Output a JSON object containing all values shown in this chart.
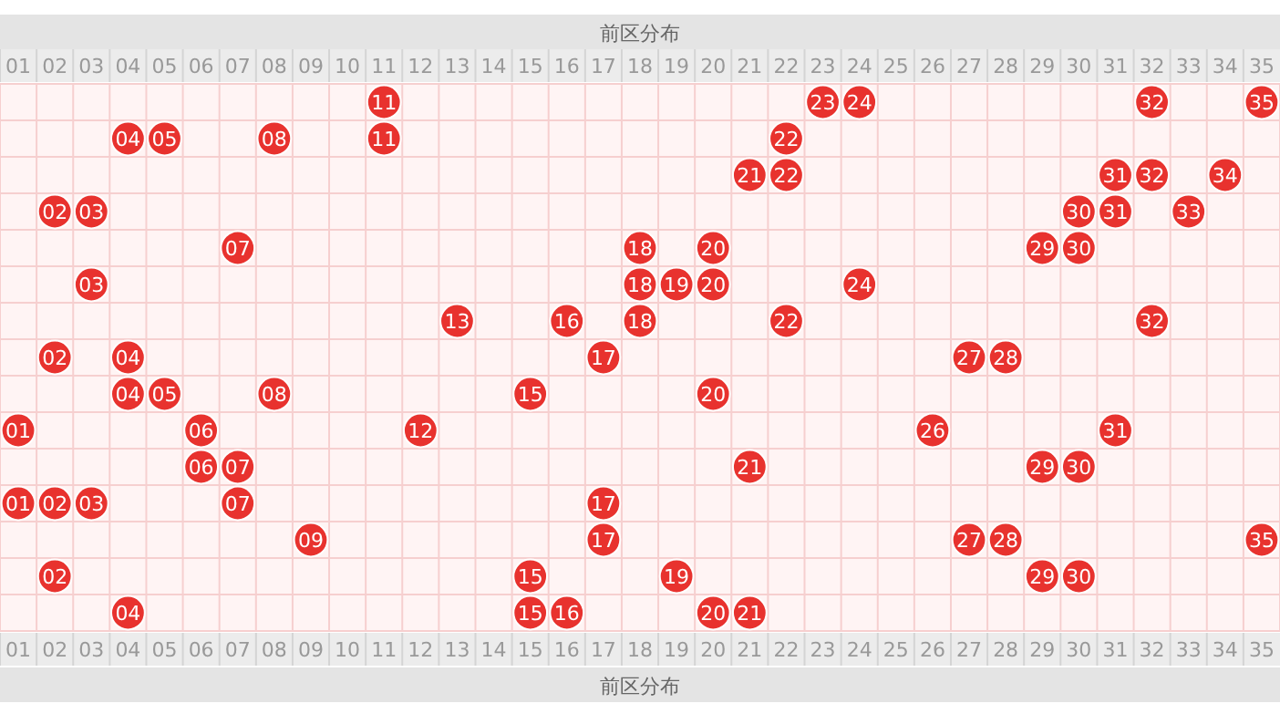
{
  "chart_data": {
    "type": "heatmap",
    "title": "前区分布",
    "xlabel": "前区分布",
    "categories": [
      "01",
      "02",
      "03",
      "04",
      "05",
      "06",
      "07",
      "08",
      "09",
      "10",
      "11",
      "12",
      "13",
      "14",
      "15",
      "16",
      "17",
      "18",
      "19",
      "20",
      "21",
      "22",
      "23",
      "24",
      "25",
      "26",
      "27",
      "28",
      "29",
      "30",
      "31",
      "32",
      "33",
      "34",
      "35"
    ],
    "y_categories": [
      null,
      null,
      null,
      null,
      null,
      null,
      null,
      null,
      null,
      null,
      null,
      null,
      null,
      null,
      null
    ],
    "cells": [
      [
        null,
        null,
        null,
        null,
        null,
        null,
        null,
        null,
        null,
        null,
        11,
        null,
        null,
        null,
        null,
        null,
        null,
        null,
        null,
        null,
        null,
        null,
        23,
        24,
        null,
        null,
        null,
        null,
        null,
        null,
        null,
        32,
        null,
        null,
        35
      ],
      [
        null,
        null,
        null,
        4,
        5,
        null,
        null,
        8,
        null,
        null,
        11,
        null,
        null,
        null,
        null,
        null,
        null,
        null,
        null,
        null,
        null,
        22,
        null,
        null,
        null,
        null,
        null,
        null,
        null,
        null,
        null,
        null,
        null,
        null,
        null
      ],
      [
        null,
        null,
        null,
        null,
        null,
        null,
        null,
        null,
        null,
        null,
        null,
        null,
        null,
        null,
        null,
        null,
        null,
        null,
        null,
        null,
        21,
        22,
        null,
        null,
        null,
        null,
        null,
        null,
        null,
        null,
        31,
        32,
        null,
        34,
        null
      ],
      [
        null,
        2,
        3,
        null,
        null,
        null,
        null,
        null,
        null,
        null,
        null,
        null,
        null,
        null,
        null,
        null,
        null,
        null,
        null,
        null,
        null,
        null,
        null,
        null,
        null,
        null,
        null,
        null,
        null,
        30,
        31,
        null,
        33,
        null,
        null
      ],
      [
        null,
        null,
        null,
        null,
        null,
        null,
        7,
        null,
        null,
        null,
        null,
        null,
        null,
        null,
        null,
        null,
        null,
        18,
        null,
        20,
        null,
        null,
        null,
        null,
        null,
        null,
        null,
        null,
        29,
        30,
        null,
        null,
        null,
        null,
        null
      ],
      [
        null,
        null,
        3,
        null,
        null,
        null,
        null,
        null,
        null,
        null,
        null,
        null,
        null,
        null,
        null,
        null,
        null,
        18,
        19,
        20,
        null,
        null,
        null,
        24,
        null,
        null,
        null,
        null,
        null,
        null,
        null,
        null,
        null,
        null,
        null
      ],
      [
        null,
        null,
        null,
        null,
        null,
        null,
        null,
        null,
        null,
        null,
        null,
        null,
        13,
        null,
        null,
        16,
        null,
        18,
        null,
        null,
        null,
        22,
        null,
        null,
        null,
        null,
        null,
        null,
        null,
        null,
        null,
        32,
        null,
        null,
        null
      ],
      [
        null,
        2,
        null,
        4,
        null,
        null,
        null,
        null,
        null,
        null,
        null,
        null,
        null,
        null,
        null,
        null,
        17,
        null,
        null,
        null,
        null,
        null,
        null,
        null,
        null,
        null,
        27,
        28,
        null,
        null,
        null,
        null,
        null,
        null,
        null
      ],
      [
        null,
        null,
        null,
        4,
        5,
        null,
        null,
        8,
        null,
        null,
        null,
        null,
        null,
        null,
        15,
        null,
        null,
        null,
        null,
        20,
        null,
        null,
        null,
        null,
        null,
        null,
        null,
        null,
        null,
        null,
        null,
        null,
        null,
        null,
        null
      ],
      [
        1,
        null,
        null,
        null,
        null,
        6,
        null,
        null,
        null,
        null,
        null,
        12,
        null,
        null,
        null,
        null,
        null,
        null,
        null,
        null,
        null,
        null,
        null,
        null,
        null,
        26,
        null,
        null,
        null,
        null,
        31,
        null,
        null,
        null,
        null
      ],
      [
        null,
        null,
        null,
        null,
        null,
        6,
        7,
        null,
        null,
        null,
        null,
        null,
        null,
        null,
        null,
        null,
        null,
        null,
        null,
        null,
        21,
        null,
        null,
        null,
        null,
        null,
        null,
        null,
        29,
        30,
        null,
        null,
        null,
        null,
        null
      ],
      [
        1,
        2,
        3,
        null,
        null,
        null,
        7,
        null,
        null,
        null,
        null,
        null,
        null,
        null,
        null,
        null,
        17,
        null,
        null,
        null,
        null,
        null,
        null,
        null,
        null,
        null,
        null,
        null,
        null,
        null,
        null,
        null,
        null,
        null,
        null
      ],
      [
        null,
        null,
        null,
        null,
        null,
        null,
        null,
        null,
        9,
        null,
        null,
        null,
        null,
        null,
        null,
        null,
        17,
        null,
        null,
        null,
        null,
        null,
        null,
        null,
        null,
        null,
        27,
        28,
        null,
        null,
        null,
        null,
        null,
        null,
        35
      ],
      [
        null,
        2,
        null,
        null,
        null,
        null,
        null,
        null,
        null,
        null,
        null,
        null,
        null,
        null,
        15,
        null,
        null,
        null,
        19,
        null,
        null,
        null,
        null,
        null,
        null,
        null,
        null,
        null,
        29,
        30,
        null,
        null,
        null,
        null,
        null
      ],
      [
        null,
        null,
        null,
        4,
        null,
        null,
        null,
        null,
        null,
        null,
        null,
        null,
        null,
        null,
        15,
        16,
        null,
        null,
        null,
        20,
        21,
        null,
        null,
        null,
        null,
        null,
        null,
        null,
        null,
        null,
        null,
        null,
        null,
        null,
        null
      ]
    ],
    "cell_labels": [
      [
        null,
        null,
        null,
        null,
        null,
        null,
        null,
        null,
        null,
        null,
        "11",
        null,
        null,
        null,
        null,
        null,
        null,
        null,
        null,
        null,
        null,
        null,
        "23",
        "24",
        null,
        null,
        null,
        null,
        null,
        null,
        null,
        "32",
        null,
        null,
        "35"
      ],
      [
        null,
        null,
        null,
        "04",
        "05",
        null,
        null,
        "08",
        null,
        null,
        "11",
        null,
        null,
        null,
        null,
        null,
        null,
        null,
        null,
        null,
        null,
        "22",
        null,
        null,
        null,
        null,
        null,
        null,
        null,
        null,
        null,
        null,
        null,
        null,
        null
      ],
      [
        null,
        null,
        null,
        null,
        null,
        null,
        null,
        null,
        null,
        null,
        null,
        null,
        null,
        null,
        null,
        null,
        null,
        null,
        null,
        null,
        "21",
        "22",
        null,
        null,
        null,
        null,
        null,
        null,
        null,
        null,
        "31",
        "32",
        null,
        "34",
        null
      ],
      [
        null,
        "02",
        "03",
        null,
        null,
        null,
        null,
        null,
        null,
        null,
        null,
        null,
        null,
        null,
        null,
        null,
        null,
        null,
        null,
        null,
        null,
        null,
        null,
        null,
        null,
        null,
        null,
        null,
        null,
        "30",
        "31",
        null,
        "33",
        null,
        null
      ],
      [
        null,
        null,
        null,
        null,
        null,
        null,
        "07",
        null,
        null,
        null,
        null,
        null,
        null,
        null,
        null,
        null,
        null,
        "18",
        null,
        "20",
        null,
        null,
        null,
        null,
        null,
        null,
        null,
        null,
        "29",
        "30",
        null,
        null,
        null,
        null,
        null
      ],
      [
        null,
        null,
        "03",
        null,
        null,
        null,
        null,
        null,
        null,
        null,
        null,
        null,
        null,
        null,
        null,
        null,
        null,
        "18",
        "19",
        "20",
        null,
        null,
        null,
        "24",
        null,
        null,
        null,
        null,
        null,
        null,
        null,
        null,
        null,
        null,
        null
      ],
      [
        null,
        null,
        null,
        null,
        null,
        null,
        null,
        null,
        null,
        null,
        null,
        null,
        "13",
        null,
        null,
        "16",
        null,
        "18",
        null,
        null,
        null,
        "22",
        null,
        null,
        null,
        null,
        null,
        null,
        null,
        null,
        null,
        "32",
        null,
        null,
        null
      ],
      [
        null,
        "02",
        null,
        "04",
        null,
        null,
        null,
        null,
        null,
        null,
        null,
        null,
        null,
        null,
        null,
        null,
        "17",
        null,
        null,
        null,
        null,
        null,
        null,
        null,
        null,
        null,
        "27",
        "28",
        null,
        null,
        null,
        null,
        null,
        null,
        null
      ],
      [
        null,
        null,
        null,
        "04",
        "05",
        null,
        null,
        "08",
        null,
        null,
        null,
        null,
        null,
        null,
        "15",
        null,
        null,
        null,
        null,
        "20",
        null,
        null,
        null,
        null,
        null,
        null,
        null,
        null,
        null,
        null,
        null,
        null,
        null,
        null,
        null
      ],
      [
        "01",
        null,
        null,
        null,
        null,
        "06",
        null,
        null,
        null,
        null,
        null,
        "12",
        null,
        null,
        null,
        null,
        null,
        null,
        null,
        null,
        null,
        null,
        null,
        null,
        null,
        "26",
        null,
        null,
        null,
        null,
        "31",
        null,
        null,
        null,
        null
      ],
      [
        null,
        null,
        null,
        null,
        null,
        "06",
        "07",
        null,
        null,
        null,
        null,
        null,
        null,
        null,
        null,
        null,
        null,
        null,
        null,
        null,
        "21",
        null,
        null,
        null,
        null,
        null,
        null,
        null,
        "29",
        "30",
        null,
        null,
        null,
        null,
        null
      ],
      [
        "01",
        "02",
        "03",
        null,
        null,
        null,
        "07",
        null,
        null,
        null,
        null,
        null,
        null,
        null,
        null,
        null,
        "17",
        null,
        null,
        null,
        null,
        null,
        null,
        null,
        null,
        null,
        null,
        null,
        null,
        null,
        null,
        null,
        null,
        null,
        null
      ],
      [
        null,
        null,
        null,
        null,
        null,
        null,
        null,
        null,
        "09",
        null,
        null,
        null,
        null,
        null,
        null,
        null,
        "17",
        null,
        null,
        null,
        null,
        null,
        null,
        null,
        null,
        null,
        "27",
        "28",
        null,
        null,
        null,
        null,
        null,
        null,
        "35"
      ],
      [
        null,
        "02",
        null,
        null,
        null,
        null,
        null,
        null,
        null,
        null,
        null,
        null,
        null,
        null,
        "15",
        null,
        null,
        null,
        "19",
        null,
        null,
        null,
        null,
        null,
        null,
        null,
        null,
        null,
        "29",
        "30",
        null,
        null,
        null,
        null,
        null
      ],
      [
        null,
        null,
        null,
        "04",
        null,
        null,
        null,
        null,
        null,
        null,
        null,
        null,
        null,
        null,
        "15",
        "16",
        null,
        null,
        null,
        "20",
        "21",
        null,
        null,
        null,
        null,
        null,
        null,
        null,
        null,
        null,
        null,
        null,
        null,
        null,
        null
      ]
    ],
    "color": "#e8322e",
    "grid": true
  }
}
